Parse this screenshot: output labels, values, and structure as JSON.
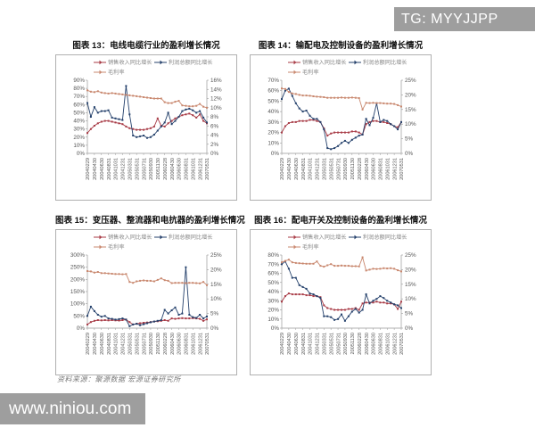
{
  "watermarks": {
    "top": "TG: MYYJJPP",
    "bottom": "www.niniou.com"
  },
  "source_note": "资料来源：聚源数据 宏源证券研究所",
  "legend": {
    "revenue": "销售收入同比增长",
    "profit": "利润总额同比增长",
    "margin": "毛利率"
  },
  "colors": {
    "revenue": "#a83b46",
    "profit": "#24406b",
    "margin": "#c9886f",
    "axis": "#999999",
    "tick_text": "#555555",
    "legend_text": "#888888",
    "watermark_bg": "#9e9e9e"
  },
  "x_labels": [
    "20040229",
    "20040430",
    "20040630",
    "20040831",
    "20041031",
    "20041231",
    "20050331",
    "20050531",
    "20050731",
    "20050930",
    "20051130",
    "20060228",
    "20060430",
    "20060630",
    "20060831",
    "20061031",
    "20061231",
    "20070531"
  ],
  "chart_data": [
    {
      "type": "line",
      "title": "图表 13：电线电缆行业的盈利增长情况",
      "left_axis": {
        "min": 0,
        "max": 90,
        "step": 10,
        "unit": "%"
      },
      "right_axis": {
        "min": 0,
        "max": 16,
        "step": 2,
        "unit": "%"
      },
      "series": [
        {
          "name": "销售收入同比增长",
          "color_key": "revenue",
          "axis": "left",
          "values": [
            25,
            30,
            34,
            37,
            39,
            40,
            40,
            39,
            38,
            37,
            36,
            33,
            31,
            30,
            29,
            29,
            29,
            30,
            31,
            33,
            43,
            34,
            33,
            37,
            40,
            43,
            45,
            47,
            48,
            49,
            47,
            44,
            48,
            40,
            37
          ]
        },
        {
          "name": "利润总额同比增长",
          "color_key": "profit",
          "axis": "left",
          "values": [
            62,
            45,
            57,
            50,
            52,
            52,
            53,
            44,
            43,
            42,
            41,
            83,
            48,
            22,
            20,
            21,
            22,
            19,
            20,
            23,
            28,
            33,
            38,
            50,
            36,
            40,
            45,
            52,
            54,
            55,
            53,
            50,
            52,
            44,
            38
          ]
        },
        {
          "name": "毛利率",
          "color_key": "margin",
          "axis": "right",
          "values": [
            13.8,
            13.5,
            13.4,
            13.6,
            13.3,
            13.2,
            13.1,
            13.2,
            13.1,
            13.0,
            12.9,
            12.8,
            12.7,
            12.6,
            12.5,
            12.4,
            12.3,
            12.2,
            12.1,
            12.0,
            12.0,
            12.0,
            11.2,
            11.0,
            11.0,
            11.3,
            11.5,
            10.5,
            10.4,
            10.3,
            10.3,
            10.4,
            10.8,
            10.2,
            10.0
          ]
        }
      ]
    },
    {
      "type": "line",
      "title": "图表 14：输配电及控制设备的盈利增长情况",
      "left_axis": {
        "min": 0,
        "max": 70,
        "step": 10,
        "unit": "%"
      },
      "right_axis": {
        "min": 0,
        "max": 25,
        "step": 5,
        "unit": "%"
      },
      "series": [
        {
          "name": "销售收入同比增长",
          "color_key": "revenue",
          "axis": "left",
          "values": [
            20,
            26,
            29,
            30,
            30,
            31,
            31,
            31,
            32,
            32,
            31,
            30,
            24,
            17,
            19,
            20,
            20,
            20,
            20,
            20,
            21,
            21,
            20,
            18,
            28,
            30,
            31,
            31,
            30,
            30,
            29,
            28,
            26,
            25,
            30
          ]
        },
        {
          "name": "利润总额同比增长",
          "color_key": "profit",
          "axis": "left",
          "values": [
            52,
            60,
            62,
            55,
            48,
            43,
            40,
            41,
            36,
            33,
            33,
            30,
            23,
            5,
            4,
            5,
            7,
            10,
            12,
            10,
            13,
            15,
            17,
            18,
            33,
            27,
            34,
            48,
            30,
            32,
            31,
            28,
            26,
            23,
            30
          ]
        },
        {
          "name": "毛利率",
          "color_key": "margin",
          "axis": "right",
          "values": [
            22.2,
            22.0,
            21.0,
            20.5,
            20.3,
            20.0,
            19.8,
            19.8,
            19.7,
            19.5,
            19.4,
            19.3,
            19.2,
            19.0,
            19.0,
            19.0,
            19.0,
            19.1,
            19.0,
            19.0,
            19.1,
            19.0,
            18.9,
            15.0,
            17.3,
            17.2,
            17.3,
            17.2,
            17.2,
            17.1,
            17.0,
            17.0,
            16.9,
            16.5,
            16.0
          ]
        }
      ]
    },
    {
      "type": "line",
      "title": "图表 15：变压器、整流器和电抗器的盈利增长情况",
      "left_axis": {
        "min": 0,
        "max": 300,
        "step": 50,
        "unit": "%"
      },
      "right_axis": {
        "min": 0,
        "max": 25,
        "step": 5,
        "unit": "%"
      },
      "series": [
        {
          "name": "销售收入同比增长",
          "color_key": "revenue",
          "axis": "left",
          "values": [
            15,
            25,
            30,
            33,
            32,
            33,
            32,
            33,
            32,
            31,
            33,
            35,
            25,
            15,
            18,
            20,
            22,
            23,
            25,
            27,
            28,
            30,
            33,
            30,
            40,
            38,
            40,
            41,
            40,
            40,
            41,
            40,
            38,
            30,
            36
          ]
        },
        {
          "name": "利润总额同比增长",
          "color_key": "profit",
          "axis": "left",
          "values": [
            50,
            88,
            70,
            55,
            47,
            50,
            40,
            38,
            35,
            37,
            40,
            35,
            8,
            15,
            18,
            12,
            16,
            20,
            24,
            27,
            30,
            33,
            75,
            60,
            73,
            85,
            55,
            60,
            250,
            55,
            45,
            42,
            55,
            40,
            48
          ]
        },
        {
          "name": "毛利率",
          "color_key": "margin",
          "axis": "right",
          "values": [
            19.5,
            19.4,
            19.0,
            19.2,
            18.8,
            18.8,
            18.7,
            18.6,
            18.5,
            18.5,
            18.4,
            18.5,
            15.8,
            15.5,
            16.0,
            16.2,
            16.3,
            16.2,
            16.2,
            16.0,
            16.5,
            17.0,
            16.4,
            16.2,
            15.4,
            15.5,
            15.5,
            15.5,
            15.4,
            15.5,
            15.5,
            15.4,
            15.3,
            15.8,
            14.7
          ]
        }
      ]
    },
    {
      "type": "line",
      "title": "图表 16：配电开关及控制设备的盈利增长情况",
      "left_axis": {
        "min": 0,
        "max": 80,
        "step": 10,
        "unit": "%"
      },
      "right_axis": {
        "min": 0,
        "max": 25,
        "step": 5,
        "unit": "%"
      },
      "series": [
        {
          "name": "销售收入同比增长",
          "color_key": "revenue",
          "axis": "left",
          "values": [
            29,
            35,
            38,
            37,
            37,
            37,
            37,
            36,
            36,
            35,
            35,
            34,
            25,
            22,
            21,
            20,
            20,
            20,
            20,
            21,
            21,
            22,
            20,
            27,
            28,
            28,
            28,
            29,
            28,
            28,
            27,
            27,
            26,
            21,
            29
          ]
        },
        {
          "name": "利润总额同比增长",
          "color_key": "profit",
          "axis": "left",
          "values": [
            70,
            73,
            65,
            55,
            55,
            47,
            45,
            43,
            38,
            37,
            35,
            33,
            13,
            13,
            12,
            9,
            10,
            15,
            8,
            13,
            18,
            21,
            17,
            20,
            37,
            27,
            30,
            32,
            35,
            33,
            30,
            28,
            26,
            25,
            22
          ]
        },
        {
          "name": "毛利率",
          "color_key": "margin",
          "axis": "right",
          "values": [
            22.5,
            23.0,
            23.4,
            22.5,
            22.3,
            22.2,
            22.1,
            22.0,
            22.0,
            22.0,
            22.8,
            21.3,
            21.0,
            21.5,
            21.9,
            21.3,
            21.3,
            21.4,
            21.3,
            21.3,
            21.2,
            21.2,
            21.1,
            24.2,
            19.7,
            20.0,
            20.3,
            20.2,
            20.3,
            20.5,
            20.4,
            20.5,
            20.3,
            19.8,
            19.4
          ]
        }
      ]
    }
  ]
}
